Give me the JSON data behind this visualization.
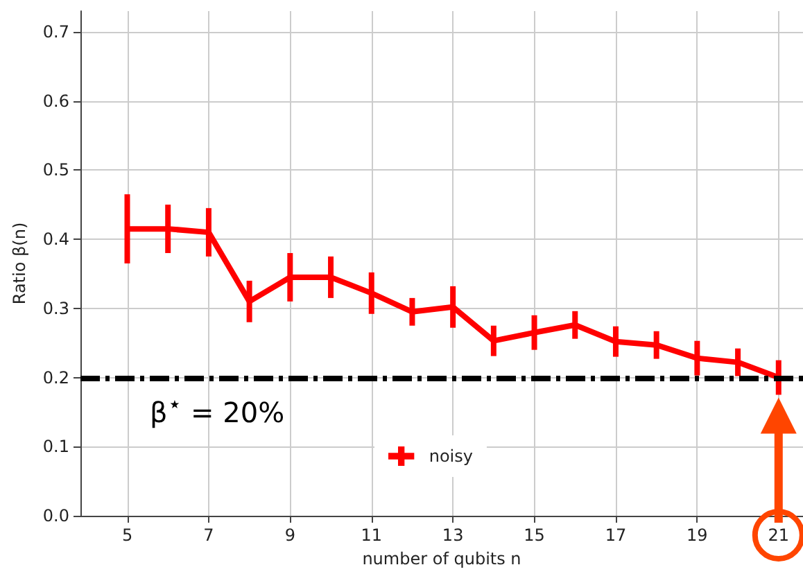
{
  "chart_data": {
    "type": "line",
    "xlabel": "number of qubits n",
    "ylabel": "Ratio β(n)",
    "x": [
      5,
      6,
      7,
      8,
      9,
      10,
      11,
      12,
      13,
      14,
      15,
      16,
      17,
      18,
      19,
      20,
      21
    ],
    "series": [
      {
        "name": "noisy",
        "color": "#ff0000",
        "values": [
          0.415,
          0.415,
          0.41,
          0.31,
          0.345,
          0.345,
          0.322,
          0.295,
          0.302,
          0.253,
          0.265,
          0.276,
          0.252,
          0.247,
          0.228,
          0.222,
          0.2
        ],
        "errors": [
          0.05,
          0.035,
          0.035,
          0.03,
          0.035,
          0.03,
          0.03,
          0.02,
          0.03,
          0.022,
          0.025,
          0.02,
          0.022,
          0.02,
          0.025,
          0.02,
          0.025
        ]
      }
    ],
    "xlim": [
      3.85,
      21.6
    ],
    "xticks": [
      5,
      7,
      9,
      11,
      13,
      15,
      17,
      19,
      21
    ],
    "ylim": [
      0,
      0.73
    ],
    "yticks": [
      {
        "value": 0,
        "label": "0.0"
      },
      0.1,
      0.2,
      0.3,
      0.4,
      0.5,
      0.6,
      0.7
    ],
    "ref_lines": [
      {
        "axis": "y",
        "value": 0.2,
        "label": "β$^{⋆}$ = 20%",
        "color": "#000000",
        "line_style": "dashdot"
      }
    ],
    "grid": true,
    "legend": "bottom",
    "marker": "none",
    "line_style": "solid"
  }
}
